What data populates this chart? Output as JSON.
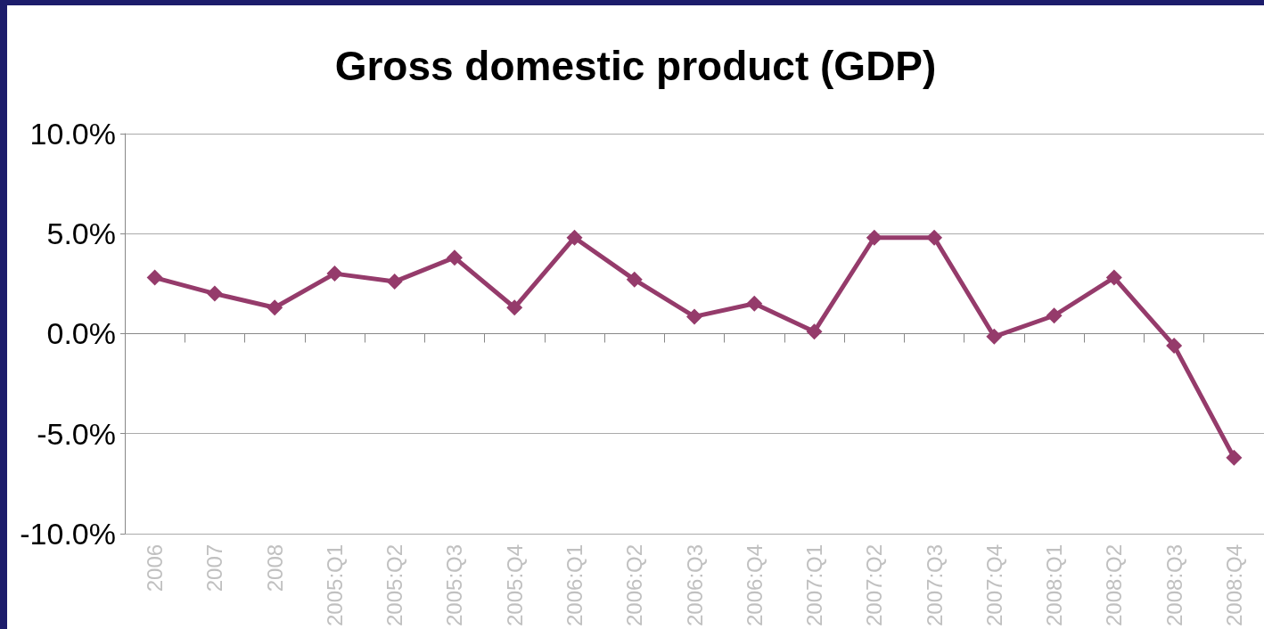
{
  "chart_data": {
    "type": "line",
    "title": "Gross domestic product (GDP)",
    "categories": [
      "2006",
      "2007",
      "2008",
      "2005:Q1",
      "2005:Q2",
      "2005:Q3",
      "2005:Q4",
      "2006:Q1",
      "2006:Q2",
      "2006:Q3",
      "2006:Q4",
      "2007:Q1",
      "2007:Q2",
      "2007:Q3",
      "2007:Q4",
      "2008:Q1",
      "2008:Q2",
      "2008:Q3",
      "2008:Q4"
    ],
    "series": [
      {
        "color": "#953b6b",
        "values": [
          2.8,
          2.0,
          1.3,
          3.0,
          2.6,
          3.8,
          1.3,
          4.8,
          2.7,
          0.85,
          1.5,
          0.1,
          4.8,
          4.8,
          -0.15,
          0.9,
          2.8,
          -0.6,
          -6.2
        ]
      }
    ],
    "ylim": [
      -10,
      10
    ],
    "yticks": [
      {
        "value": -10,
        "label": "-10.0%"
      },
      {
        "value": -5,
        "label": "-5.0%"
      },
      {
        "value": 0,
        "label": "0.0%"
      },
      {
        "value": 5,
        "label": "5.0%"
      },
      {
        "value": 10,
        "label": "10.0%"
      }
    ],
    "grid": "y",
    "marker": "diamond",
    "line_style": "solid"
  }
}
